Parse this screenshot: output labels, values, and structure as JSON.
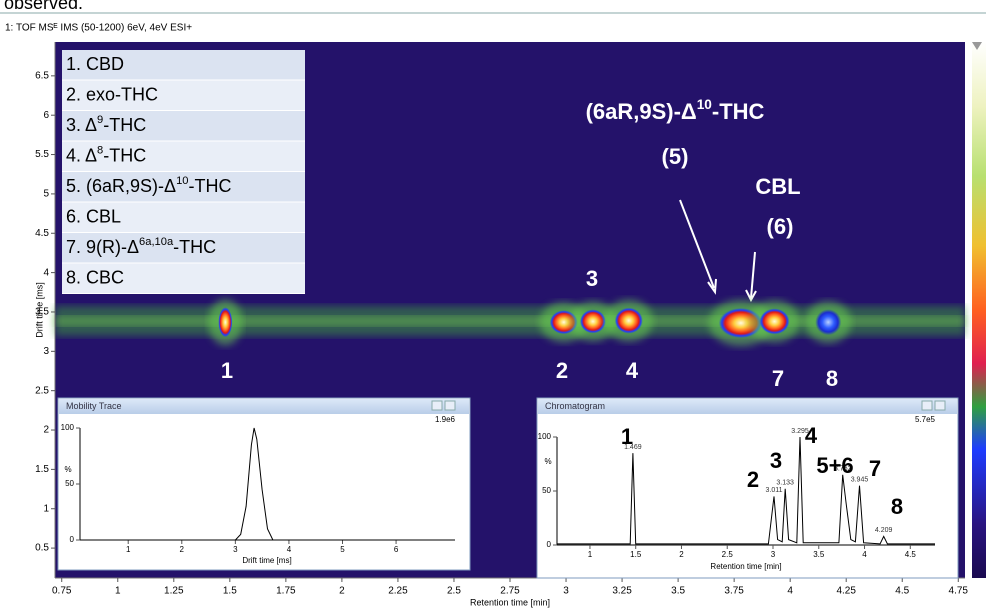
{
  "page_caption": "observed.",
  "chart_data": [
    {
      "type": "scatter",
      "title": "1: TOF MSᴱ IMS (50-1200) 6eV, 4eV ESI+",
      "x_label": "Retention time [min]",
      "y_label": "Drift time [ms]",
      "xlim": [
        0.72,
        4.78
      ],
      "ylim": [
        0.12,
        6.93
      ],
      "xticks": [
        0.75,
        1,
        1.25,
        1.5,
        1.75,
        2,
        2.25,
        2.5,
        2.75,
        3,
        3.25,
        3.5,
        3.75,
        4,
        4.25,
        4.5,
        4.75
      ],
      "yticks": [
        0.5,
        1,
        1.5,
        2,
        2.5,
        3,
        3.5,
        4,
        4.5,
        5,
        5.5,
        6,
        6.5
      ],
      "x": [
        1.48,
        2.99,
        3.12,
        3.28,
        3.78,
        3.93,
        4.17
      ],
      "values": [
        3.37,
        3.37,
        3.38,
        3.39,
        3.36,
        3.38,
        3.37
      ],
      "legend": [
        {
          "label": "1. CBD"
        },
        {
          "label": "2. exo-THC"
        },
        {
          "label": "3. Δ",
          "sup": "9",
          "suffix": "-THC"
        },
        {
          "label": "4. Δ",
          "sup": "8",
          "suffix": "-THC"
        },
        {
          "label": "5. (6aR,9S)-Δ",
          "sup": "10",
          "suffix": "-THC"
        },
        {
          "label": "6. CBL"
        },
        {
          "label": "7. 9(R)-Δ",
          "sup": "6a,10a",
          "suffix": "-THC"
        },
        {
          "label": "8. CBC"
        }
      ],
      "annotations": [
        {
          "label": "(6aR,9S)-Δ",
          "sup": "10",
          "suffix": "-THC"
        },
        {
          "label": "(5)"
        },
        {
          "label": "CBL"
        },
        {
          "label": "(6)"
        },
        {
          "label": "3"
        },
        {
          "label": "1"
        },
        {
          "label": "2"
        },
        {
          "label": "4"
        },
        {
          "label": "7"
        },
        {
          "label": "8"
        }
      ]
    },
    {
      "type": "line",
      "title": "Mobility Trace",
      "scale_label": "1.9e6",
      "x_label": "Drift time [ms]",
      "y_label": "%",
      "xlim": [
        0.1,
        7.1
      ],
      "ylim": [
        0,
        100
      ],
      "xticks": [
        1,
        2,
        3,
        4,
        5,
        6
      ],
      "yticks": [
        0,
        50,
        100
      ],
      "x": [
        0.1,
        3.0,
        3.1,
        3.2,
        3.3,
        3.35,
        3.4,
        3.5,
        3.6,
        3.7,
        7.1
      ],
      "values": [
        0,
        0,
        5,
        30,
        85,
        100,
        90,
        45,
        10,
        0,
        0
      ]
    },
    {
      "type": "line",
      "title": "Chromatogram",
      "scale_label": "5.7e5",
      "x_label": "Retention time [min]",
      "y_label": "%",
      "xlim": [
        0.64,
        4.77
      ],
      "ylim": [
        0,
        100
      ],
      "xticks": [
        1,
        1.5,
        2,
        2.5,
        3,
        3.5,
        4,
        4.5
      ],
      "yticks": [
        0,
        50,
        100
      ],
      "x": [
        0.64,
        1.44,
        1.469,
        1.5,
        2.95,
        3.011,
        3.05,
        3.1,
        3.133,
        3.17,
        3.26,
        3.295,
        3.33,
        3.72,
        3.762,
        3.8,
        3.85,
        3.9,
        3.945,
        3.99,
        4.17,
        4.209,
        4.25,
        4.77
      ],
      "values": [
        1,
        1,
        85,
        1,
        1,
        45,
        5,
        3,
        52,
        5,
        2,
        100,
        2,
        2,
        65,
        38,
        5,
        3,
        55,
        2,
        1,
        8,
        1,
        1
      ],
      "peak_times": [
        1.469,
        3.011,
        3.133,
        3.295,
        3.762,
        3.945,
        4.209
      ],
      "annotations": [
        {
          "label": "1"
        },
        {
          "label": "2"
        },
        {
          "label": "3"
        },
        {
          "label": "4"
        },
        {
          "label": "5+6"
        },
        {
          "label": "7"
        },
        {
          "label": "8"
        }
      ]
    }
  ]
}
